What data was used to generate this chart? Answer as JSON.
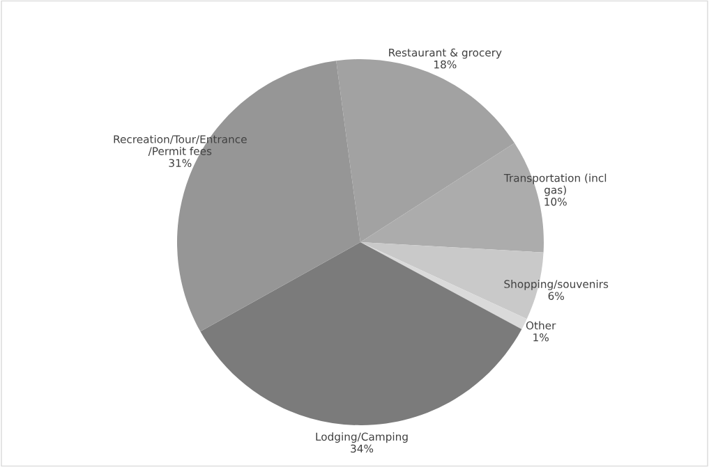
{
  "chart_data": {
    "type": "pie",
    "categories": [
      "Restaurant & grocery",
      "Transportation (incl\ngas)",
      "Shopping/souvenirs",
      "Other",
      "Lodging/Camping",
      "Recreation/Tour/Entrance\n/Permit fees"
    ],
    "values": [
      18,
      10,
      6,
      1,
      34,
      31
    ],
    "value_labels": [
      "18%",
      "10%",
      "6%",
      "1%",
      "34%",
      "31%"
    ],
    "colors": [
      "#a2a2a2",
      "#acacac",
      "#c9c9c9",
      "#dadada",
      "#7b7b7b",
      "#969696"
    ]
  }
}
